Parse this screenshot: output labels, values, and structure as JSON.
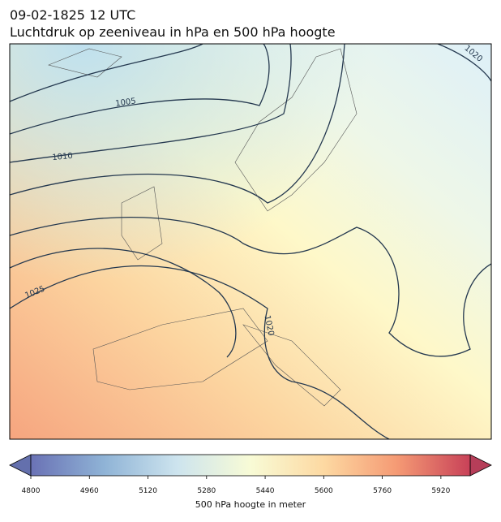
{
  "title": "09-02-1825 12 UTC",
  "subtitle": "Luchtdruk op zeeniveau in hPa en 500 hPa hoogte",
  "isobar_labels": [
    "1005",
    "1010",
    "1025",
    "1020",
    "1020"
  ],
  "colorbar": {
    "label": "500 hPa hoogte in meter",
    "lim": [
      4800,
      6000
    ],
    "ticks": [
      4800,
      4960,
      5120,
      5280,
      5440,
      5600,
      5760,
      5920
    ],
    "colors": [
      "#6a72b5",
      "#8fb3d6",
      "#cde4ee",
      "#f8fbd6",
      "#fdd9a2",
      "#f59a74",
      "#c84158"
    ],
    "extend_colors": [
      "#6470ad",
      "#b63e59"
    ]
  }
}
